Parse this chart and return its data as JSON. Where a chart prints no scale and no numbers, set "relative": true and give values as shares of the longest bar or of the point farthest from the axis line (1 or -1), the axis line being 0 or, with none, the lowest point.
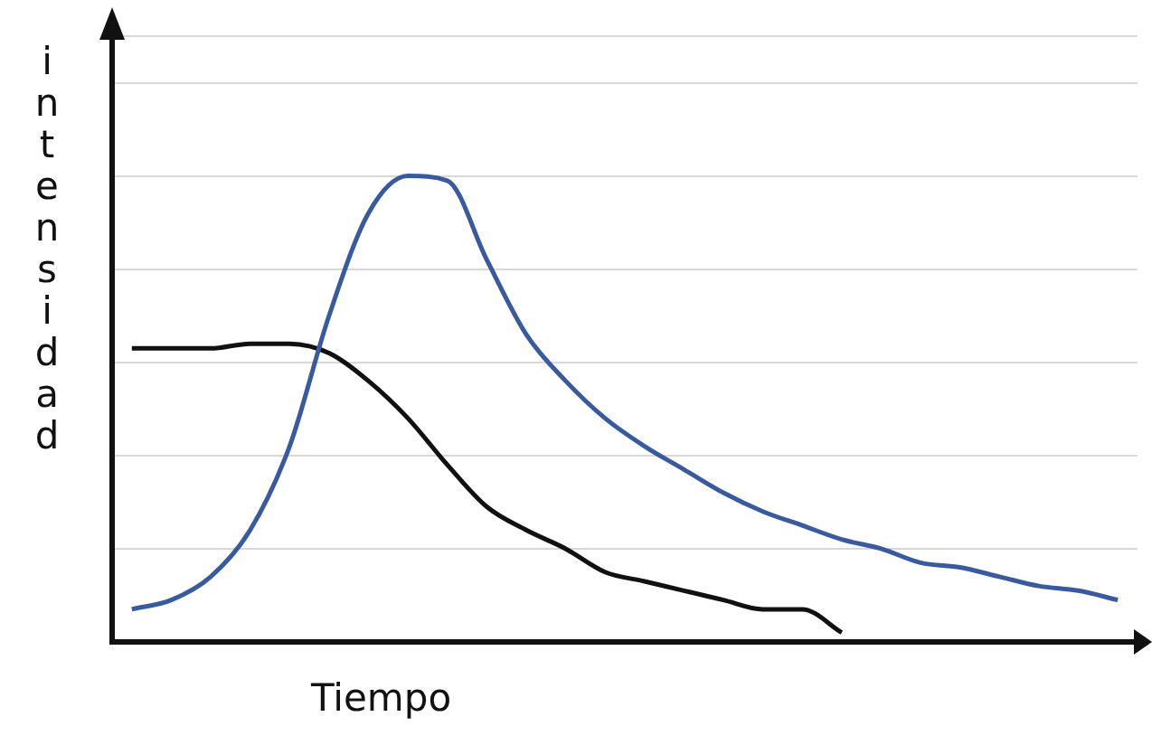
{
  "chart_data": {
    "type": "line",
    "relative": true,
    "xlabel": "Tiempo",
    "ylabel": "intensidad",
    "grid": "y",
    "marker": "none",
    "categories": [
      null,
      null,
      null,
      null,
      null,
      null,
      null,
      null,
      null,
      null,
      null,
      null,
      null,
      null,
      null,
      null,
      null,
      null,
      null,
      null,
      null,
      null,
      null,
      null,
      null,
      null
    ],
    "series": [
      {
        "color": "#3a5a9e",
        "values": [
          0.07,
          0.09,
          0.14,
          0.24,
          0.42,
          0.7,
          0.92,
          1.0,
          0.99,
          0.82,
          0.66,
          0.56,
          0.48,
          0.42,
          0.37,
          0.32,
          0.28,
          0.25,
          0.22,
          0.2,
          0.17,
          0.16,
          0.14,
          0.12,
          0.11,
          0.09
        ]
      },
      {
        "color": "#111111",
        "values": [
          0.63,
          0.63,
          0.63,
          0.64,
          0.64,
          0.62,
          0.56,
          0.48,
          0.38,
          0.29,
          0.24,
          0.2,
          0.15,
          0.13,
          0.11,
          0.09,
          0.07,
          0.07,
          0.02,
          null,
          null,
          null,
          null,
          null,
          null,
          null
        ]
      }
    ]
  }
}
